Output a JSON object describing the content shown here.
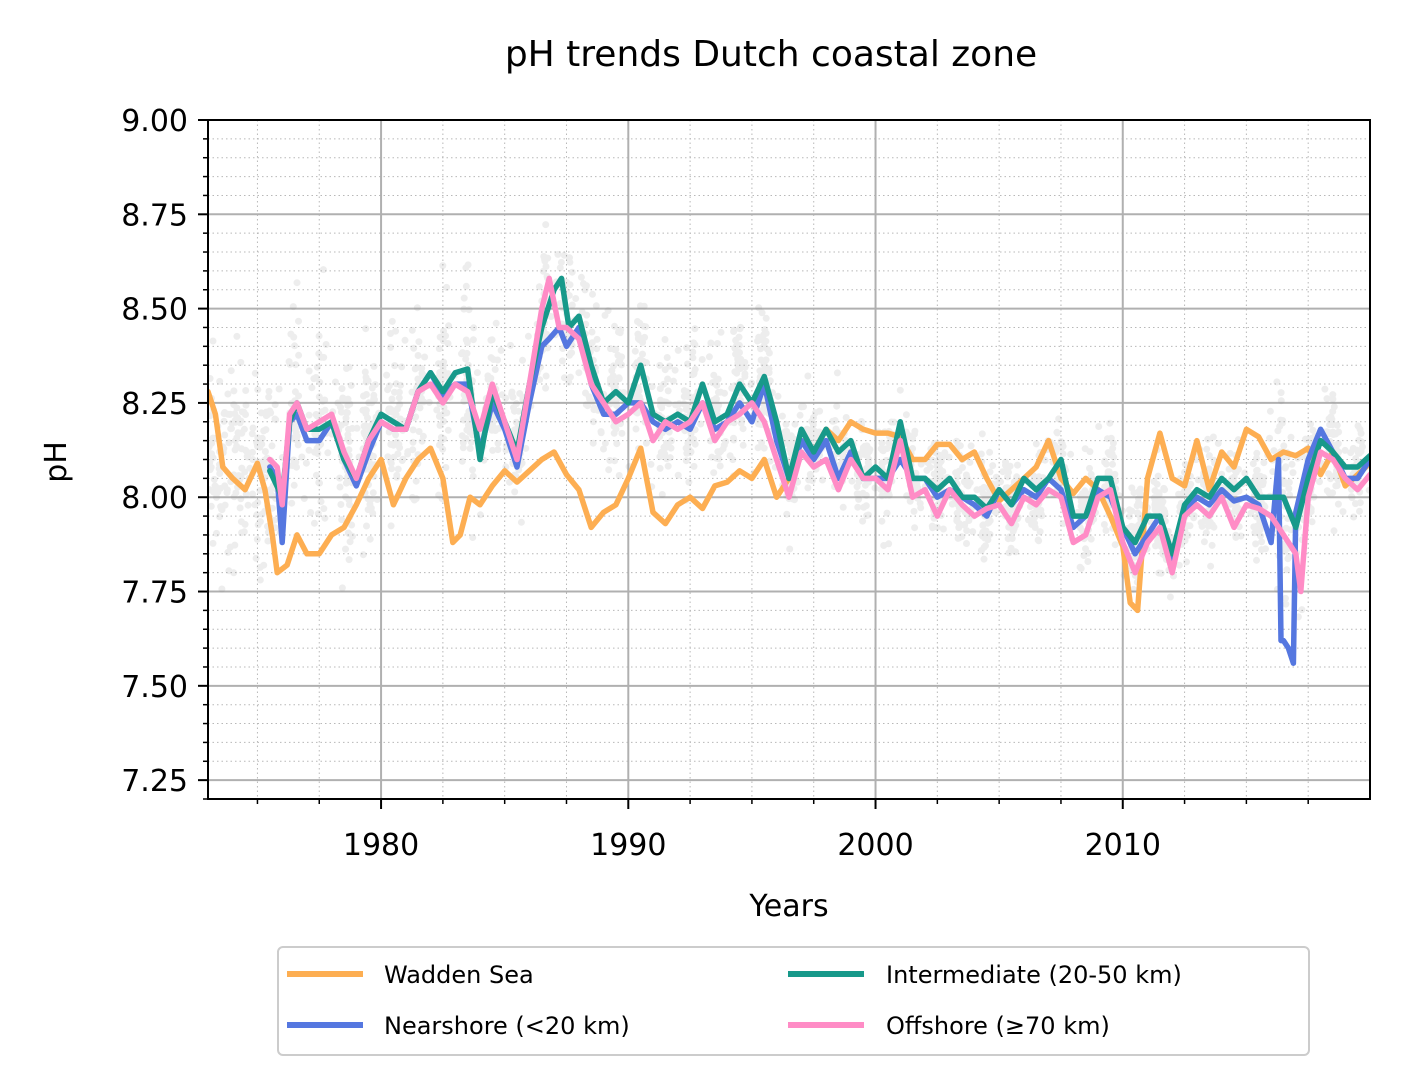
{
  "chart_data": {
    "type": "line",
    "title": "pH trends Dutch coastal zone",
    "xlabel": "Years",
    "ylabel": "pH",
    "xlim": [
      1973.0,
      2020.0
    ],
    "ylim": [
      7.2,
      9.0
    ],
    "xticks": [
      1980,
      1990,
      2000,
      2010
    ],
    "xtick_labels": [
      "1980",
      "1990",
      "2000",
      "2010"
    ],
    "yticks": [
      7.25,
      7.5,
      7.75,
      8.0,
      8.25,
      8.5,
      8.75,
      9.0
    ],
    "ytick_labels": [
      "7.25",
      "7.50",
      "7.75",
      "8.00",
      "8.25",
      "8.50",
      "8.75",
      "9.00"
    ],
    "grid": true,
    "legend": "below",
    "background_points_color": "#8c8c8c",
    "series": [
      {
        "name": "Wadden Sea",
        "color": "#fdae52",
        "x": [
          1973.0,
          1973.3,
          1973.6,
          1974.0,
          1974.5,
          1975.0,
          1975.3,
          1975.6,
          1975.8,
          1976.2,
          1976.6,
          1977.0,
          1977.5,
          1978.0,
          1978.5,
          1979.0,
          1979.5,
          1980.0,
          1980.5,
          1981.0,
          1981.5,
          1982.0,
          1982.5,
          1982.9,
          1983.2,
          1983.6,
          1984.0,
          1984.5,
          1985.0,
          1985.5,
          1986.0,
          1986.5,
          1987.0,
          1987.5,
          1988.0,
          1988.5,
          1989.0,
          1989.5,
          1990.0,
          1990.5,
          1991.0,
          1991.5,
          1992.0,
          1992.5,
          1993.0,
          1993.5,
          1994.0,
          1994.5,
          1995.0,
          1995.5,
          1996.0,
          1996.5,
          1997.0,
          1997.5,
          1998.0,
          1998.5,
          1999.0,
          1999.5,
          2000.0,
          2000.5,
          2001.0,
          2001.5,
          2002.0,
          2002.5,
          2003.0,
          2003.5,
          2004.0,
          2004.5,
          2005.0,
          2005.5,
          2006.0,
          2006.5,
          2007.0,
          2007.5,
          2008.0,
          2008.5,
          2009.0,
          2009.5,
          2010.0,
          2010.3,
          2010.6,
          2011.0,
          2011.5,
          2012.0,
          2012.5,
          2013.0,
          2013.5,
          2014.0,
          2014.5,
          2015.0,
          2015.5,
          2016.0,
          2016.5,
          2017.0,
          2017.5,
          2018.0,
          2018.5,
          2019.0,
          2019.5,
          2020.0
        ],
        "y": [
          8.28,
          8.22,
          8.08,
          8.05,
          8.02,
          8.09,
          8.02,
          7.9,
          7.8,
          7.82,
          7.9,
          7.85,
          7.85,
          7.9,
          7.92,
          7.98,
          8.05,
          8.1,
          7.98,
          8.05,
          8.1,
          8.13,
          8.05,
          7.88,
          7.9,
          8.0,
          7.98,
          8.03,
          8.07,
          8.04,
          8.07,
          8.1,
          8.12,
          8.06,
          8.02,
          7.92,
          7.96,
          7.98,
          8.05,
          8.13,
          7.96,
          7.93,
          7.98,
          8.0,
          7.97,
          8.03,
          8.04,
          8.07,
          8.05,
          8.1,
          8.0,
          8.05,
          8.15,
          8.12,
          8.18,
          8.15,
          8.2,
          8.18,
          8.17,
          8.17,
          8.16,
          8.1,
          8.1,
          8.14,
          8.14,
          8.1,
          8.12,
          8.05,
          7.99,
          8.02,
          8.05,
          8.08,
          8.15,
          8.05,
          8.01,
          8.05,
          8.02,
          7.95,
          7.87,
          7.72,
          7.7,
          8.05,
          8.17,
          8.05,
          8.03,
          8.15,
          8.02,
          8.12,
          8.08,
          8.18,
          8.16,
          8.1,
          8.12,
          8.11,
          8.13,
          8.06,
          8.12,
          8.03,
          8.06,
          8.09
        ]
      },
      {
        "name": "Nearshore (<20 km)",
        "color": "#5577e0",
        "x": [
          1975.5,
          1975.8,
          1976.0,
          1976.3,
          1976.6,
          1977.0,
          1977.5,
          1978.0,
          1978.5,
          1979.0,
          1979.5,
          1980.0,
          1980.5,
          1981.0,
          1981.5,
          1982.0,
          1982.5,
          1983.0,
          1983.5,
          1984.0,
          1984.5,
          1985.0,
          1985.5,
          1986.0,
          1986.5,
          1986.8,
          1987.2,
          1987.5,
          1988.0,
          1988.5,
          1989.0,
          1989.5,
          1990.0,
          1990.5,
          1991.0,
          1991.5,
          1992.0,
          1992.5,
          1993.0,
          1993.5,
          1994.0,
          1994.5,
          1995.0,
          1995.5,
          1996.0,
          1996.5,
          1997.0,
          1997.5,
          1998.0,
          1998.5,
          1999.0,
          1999.5,
          2000.0,
          2000.5,
          2001.0,
          2001.5,
          2002.0,
          2002.5,
          2003.0,
          2003.5,
          2004.0,
          2004.5,
          2005.0,
          2005.5,
          2006.0,
          2006.5,
          2007.0,
          2007.5,
          2008.0,
          2008.5,
          2009.0,
          2009.5,
          2010.0,
          2010.5,
          2011.0,
          2011.5,
          2012.0,
          2012.5,
          2013.0,
          2013.5,
          2014.0,
          2014.5,
          2015.0,
          2015.5,
          2016.0,
          2016.3,
          2016.4,
          2016.5,
          2016.7,
          2016.9,
          2017.0,
          2017.5,
          2018.0,
          2018.5,
          2019.0,
          2019.5,
          2020.0
        ],
        "y": [
          8.08,
          8.05,
          7.88,
          8.2,
          8.22,
          8.15,
          8.15,
          8.2,
          8.1,
          8.03,
          8.12,
          8.2,
          8.18,
          8.18,
          8.28,
          8.33,
          8.27,
          8.3,
          8.3,
          8.12,
          8.25,
          8.18,
          8.08,
          8.25,
          8.4,
          8.42,
          8.45,
          8.4,
          8.45,
          8.3,
          8.22,
          8.22,
          8.25,
          8.25,
          8.2,
          8.18,
          8.2,
          8.18,
          8.25,
          8.18,
          8.2,
          8.25,
          8.2,
          8.3,
          8.15,
          8.05,
          8.15,
          8.1,
          8.15,
          8.05,
          8.12,
          8.05,
          8.05,
          8.05,
          8.1,
          8.05,
          8.05,
          8.0,
          8.02,
          8.0,
          7.98,
          7.95,
          8.02,
          7.98,
          8.02,
          8.0,
          8.05,
          8.02,
          7.92,
          7.95,
          8.02,
          8.0,
          7.92,
          7.85,
          7.9,
          7.95,
          7.82,
          7.96,
          8.0,
          7.98,
          8.02,
          7.99,
          8.0,
          7.98,
          7.88,
          8.1,
          7.62,
          7.62,
          7.6,
          7.56,
          7.96,
          8.1,
          8.18,
          8.12,
          8.05,
          8.05,
          8.1
        ]
      },
      {
        "name": "Intermediate (20-50 km)",
        "color": "#17998a",
        "x": [
          1975.5,
          1976.0,
          1976.3,
          1976.6,
          1977.0,
          1977.5,
          1978.0,
          1978.5,
          1979.0,
          1979.5,
          1980.0,
          1980.5,
          1981.0,
          1981.5,
          1982.0,
          1982.5,
          1983.0,
          1983.5,
          1984.0,
          1984.5,
          1985.0,
          1985.5,
          1986.0,
          1986.5,
          1987.0,
          1987.3,
          1987.6,
          1988.0,
          1988.5,
          1989.0,
          1989.5,
          1990.0,
          1990.5,
          1991.0,
          1991.5,
          1992.0,
          1992.5,
          1993.0,
          1993.5,
          1994.0,
          1994.5,
          1995.0,
          1995.5,
          1996.0,
          1996.5,
          1997.0,
          1997.5,
          1998.0,
          1998.5,
          1999.0,
          1999.5,
          2000.0,
          2000.5,
          2001.0,
          2001.5,
          2002.0,
          2002.5,
          2003.0,
          2003.5,
          2004.0,
          2004.5,
          2005.0,
          2005.5,
          2006.0,
          2006.5,
          2007.0,
          2007.5,
          2008.0,
          2008.5,
          2009.0,
          2009.5,
          2010.0,
          2010.5,
          2011.0,
          2011.5,
          2012.0,
          2012.5,
          2013.0,
          2013.5,
          2014.0,
          2014.5,
          2015.0,
          2015.5,
          2016.0,
          2016.5,
          2017.0,
          2017.5,
          2018.0,
          2018.5,
          2019.0,
          2019.5,
          2020.0
        ],
        "y": [
          8.07,
          8.0,
          8.2,
          8.25,
          8.18,
          8.18,
          8.2,
          8.1,
          8.05,
          8.15,
          8.22,
          8.2,
          8.18,
          8.28,
          8.33,
          8.28,
          8.33,
          8.34,
          8.1,
          8.28,
          8.2,
          8.12,
          8.3,
          8.45,
          8.55,
          8.58,
          8.45,
          8.48,
          8.35,
          8.25,
          8.28,
          8.25,
          8.35,
          8.22,
          8.2,
          8.22,
          8.2,
          8.3,
          8.2,
          8.22,
          8.3,
          8.25,
          8.32,
          8.2,
          8.05,
          8.18,
          8.12,
          8.18,
          8.12,
          8.15,
          8.05,
          8.08,
          8.05,
          8.2,
          8.05,
          8.05,
          8.02,
          8.05,
          8.0,
          8.0,
          7.97,
          8.02,
          7.98,
          8.05,
          8.02,
          8.05,
          8.1,
          7.95,
          7.95,
          8.05,
          8.05,
          7.92,
          7.88,
          7.95,
          7.95,
          7.85,
          7.98,
          8.02,
          8.0,
          8.05,
          8.02,
          8.05,
          8.0,
          8.0,
          8.0,
          7.92,
          8.05,
          8.15,
          8.12,
          8.08,
          8.08,
          8.11
        ]
      },
      {
        "name": "Offshore (≥70 km)",
        "color": "#ff8cc6",
        "x": [
          1975.5,
          1975.8,
          1976.0,
          1976.3,
          1976.6,
          1977.0,
          1977.5,
          1978.0,
          1978.5,
          1979.0,
          1979.5,
          1980.0,
          1980.5,
          1981.0,
          1981.5,
          1982.0,
          1982.5,
          1983.0,
          1983.5,
          1984.0,
          1984.5,
          1985.0,
          1985.5,
          1986.0,
          1986.5,
          1986.8,
          1987.2,
          1987.5,
          1988.0,
          1988.5,
          1989.0,
          1989.5,
          1990.0,
          1990.5,
          1991.0,
          1991.5,
          1992.0,
          1992.5,
          1993.0,
          1993.5,
          1994.0,
          1994.5,
          1995.0,
          1995.5,
          1996.0,
          1996.5,
          1997.0,
          1997.5,
          1998.0,
          1998.5,
          1999.0,
          1999.5,
          2000.0,
          2000.5,
          2001.0,
          2001.5,
          2002.0,
          2002.5,
          2003.0,
          2003.5,
          2004.0,
          2004.5,
          2005.0,
          2005.5,
          2006.0,
          2006.5,
          2007.0,
          2007.5,
          2008.0,
          2008.5,
          2009.0,
          2009.5,
          2010.0,
          2010.5,
          2011.0,
          2011.5,
          2012.0,
          2012.5,
          2013.0,
          2013.5,
          2014.0,
          2014.5,
          2015.0,
          2015.5,
          2016.0,
          2016.5,
          2017.0,
          2017.2,
          2017.5,
          2018.0,
          2018.5,
          2019.0,
          2019.5,
          2020.0
        ],
        "y": [
          8.1,
          8.08,
          7.98,
          8.22,
          8.25,
          8.18,
          8.2,
          8.22,
          8.12,
          8.05,
          8.15,
          8.2,
          8.18,
          8.18,
          8.28,
          8.3,
          8.25,
          8.3,
          8.28,
          8.18,
          8.3,
          8.2,
          8.1,
          8.3,
          8.5,
          8.58,
          8.45,
          8.45,
          8.42,
          8.3,
          8.25,
          8.2,
          8.22,
          8.25,
          8.15,
          8.2,
          8.18,
          8.2,
          8.25,
          8.15,
          8.2,
          8.22,
          8.25,
          8.2,
          8.1,
          8.0,
          8.12,
          8.08,
          8.1,
          8.02,
          8.1,
          8.05,
          8.05,
          8.02,
          8.15,
          8.0,
          8.02,
          7.95,
          8.02,
          7.98,
          7.95,
          7.97,
          7.98,
          7.93,
          8.0,
          7.98,
          8.02,
          8.0,
          7.88,
          7.9,
          8.0,
          8.02,
          7.88,
          7.8,
          7.88,
          7.92,
          7.8,
          7.95,
          7.98,
          7.95,
          8.0,
          7.92,
          7.98,
          7.97,
          7.95,
          7.9,
          7.85,
          7.75,
          8.0,
          8.12,
          8.1,
          8.05,
          8.02,
          8.06
        ]
      }
    ]
  }
}
